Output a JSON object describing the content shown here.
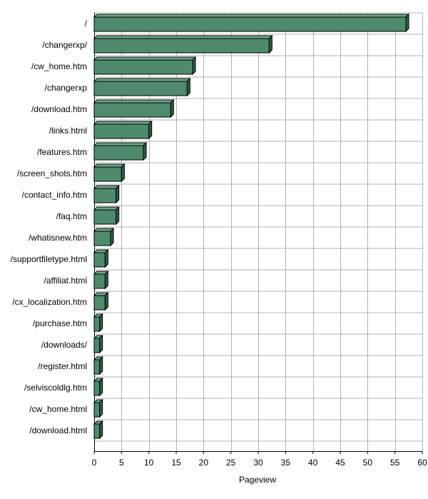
{
  "chart_data": {
    "type": "bar",
    "orientation": "horizontal",
    "style": "3d",
    "xlabel": "Pageview",
    "ylabel": "",
    "xlim": [
      0,
      60
    ],
    "xticks": [
      0,
      5,
      10,
      15,
      20,
      25,
      30,
      35,
      40,
      45,
      50,
      55,
      60
    ],
    "grid": true,
    "categories": [
      "/",
      "/changerxp/",
      "/cw_home.htm",
      "/changerxp",
      "/download.htm",
      "/links.html",
      "/features.htm",
      "/screen_shots.htm",
      "/contact_info.htm",
      "/faq.htm",
      "/whatisnew.htm",
      "/supportfiletype.html",
      "/affiliat.html",
      "/cx_localization.htm",
      "/purchase.htm",
      "/downloads/",
      "/register.html",
      "/selviscoldlg.htm",
      "/cw_home.html",
      "/download.html"
    ],
    "values": [
      57,
      32,
      18,
      17,
      14,
      10,
      9,
      5,
      4,
      4,
      3,
      2,
      2,
      2,
      1,
      1,
      1,
      1,
      1,
      1
    ],
    "colors": {
      "bar_front": "#4e8a6c",
      "bar_top": "#6fa88a",
      "bar_side": "#2f5e46",
      "grid": "#b0b0b0",
      "axis": "#000000"
    }
  }
}
